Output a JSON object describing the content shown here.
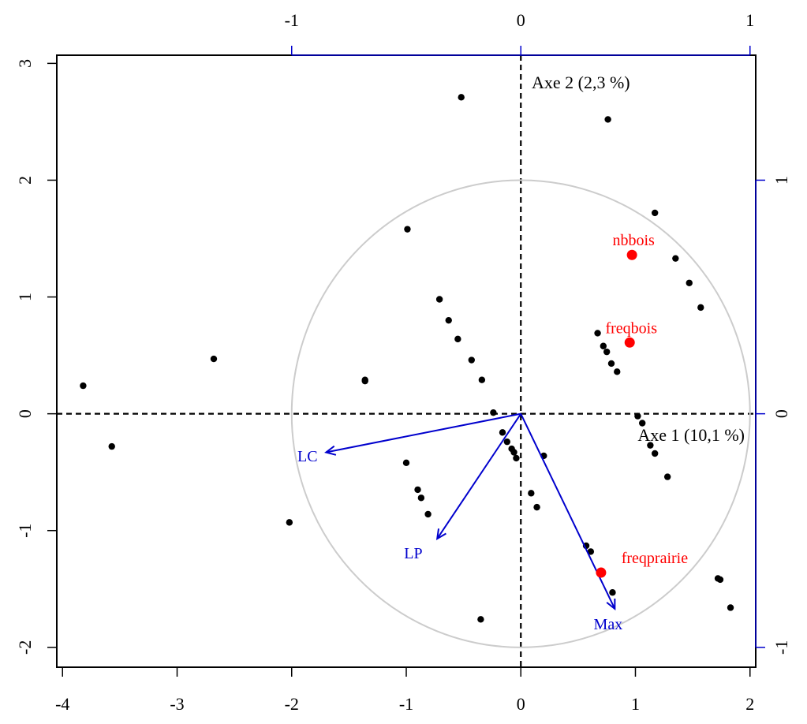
{
  "chart_data": {
    "type": "scatter",
    "title": "",
    "xlabel": "",
    "ylabel": "",
    "xlim": [
      -4.05,
      2.05
    ],
    "ylim": [
      -2.17,
      3.07
    ],
    "x_ticks": [
      "-4",
      "-3",
      "-2",
      "-1",
      "0",
      "1",
      "2"
    ],
    "y_ticks": [
      "-2",
      "-1",
      "0",
      "1",
      "2",
      "3"
    ],
    "top_axis": {
      "ticks": [
        "-1",
        "0",
        "1"
      ],
      "color": "#0000cd"
    },
    "right_axis": {
      "ticks": [
        "-1",
        "0",
        "1"
      ],
      "color": "#0000cd"
    },
    "axis_titles": {
      "axis1": "Axe 1 (10,1 %)",
      "axis2": "Axe 2 (2,3 %)"
    },
    "correlation_circle": {
      "radius": 2,
      "color": "#cccccc"
    },
    "points": [
      [
        -3.82,
        0.24
      ],
      [
        -3.57,
        -0.28
      ],
      [
        -2.68,
        0.47
      ],
      [
        -2.02,
        -0.93
      ],
      [
        -1.36,
        0.29
      ],
      [
        -1.36,
        0.28
      ],
      [
        -0.99,
        1.58
      ],
      [
        -1.0,
        -0.42
      ],
      [
        -0.9,
        -0.65
      ],
      [
        -0.87,
        -0.72
      ],
      [
        -0.81,
        -0.86
      ],
      [
        -0.71,
        0.98
      ],
      [
        -0.63,
        0.8
      ],
      [
        -0.55,
        0.64
      ],
      [
        -0.43,
        0.46
      ],
      [
        -0.34,
        0.29
      ],
      [
        -0.52,
        2.71
      ],
      [
        -0.35,
        -1.76
      ],
      [
        -0.24,
        0.01
      ],
      [
        -0.16,
        -0.16
      ],
      [
        -0.12,
        -0.24
      ],
      [
        -0.08,
        -0.3
      ],
      [
        -0.06,
        -0.33
      ],
      [
        -0.04,
        -0.38
      ],
      [
        0.09,
        -0.68
      ],
      [
        0.14,
        -0.8
      ],
      [
        0.2,
        -0.36
      ],
      [
        0.57,
        -1.13
      ],
      [
        0.61,
        -1.18
      ],
      [
        0.8,
        -1.53
      ],
      [
        0.76,
        2.52
      ],
      [
        0.67,
        0.69
      ],
      [
        0.72,
        0.58
      ],
      [
        0.75,
        0.53
      ],
      [
        0.79,
        0.43
      ],
      [
        0.84,
        0.36
      ],
      [
        1.17,
        1.72
      ],
      [
        1.35,
        1.33
      ],
      [
        1.47,
        1.12
      ],
      [
        1.57,
        0.91
      ],
      [
        1.02,
        -0.02
      ],
      [
        1.06,
        -0.08
      ],
      [
        1.13,
        -0.27
      ],
      [
        1.17,
        -0.34
      ],
      [
        1.28,
        -0.54
      ],
      [
        1.72,
        -1.41
      ],
      [
        1.74,
        -1.42
      ],
      [
        1.83,
        -1.66
      ]
    ],
    "vectors": [
      {
        "name": "LC",
        "x": -1.7,
        "y": -0.33,
        "color": "#0000cd"
      },
      {
        "name": "LP",
        "x": -0.73,
        "y": -1.07,
        "color": "#0000cd"
      },
      {
        "name": "Max",
        "x": 0.82,
        "y": -1.67,
        "color": "#0000cd"
      }
    ],
    "supplementary": [
      {
        "name": "nbbois",
        "x": 0.97,
        "y": 1.36,
        "color": "#ff0000"
      },
      {
        "name": "freqbois",
        "x": 0.95,
        "y": 0.61,
        "color": "#ff0000"
      },
      {
        "name": "freqprairie",
        "x": 0.7,
        "y": -1.36,
        "color": "#ff0000"
      }
    ]
  }
}
